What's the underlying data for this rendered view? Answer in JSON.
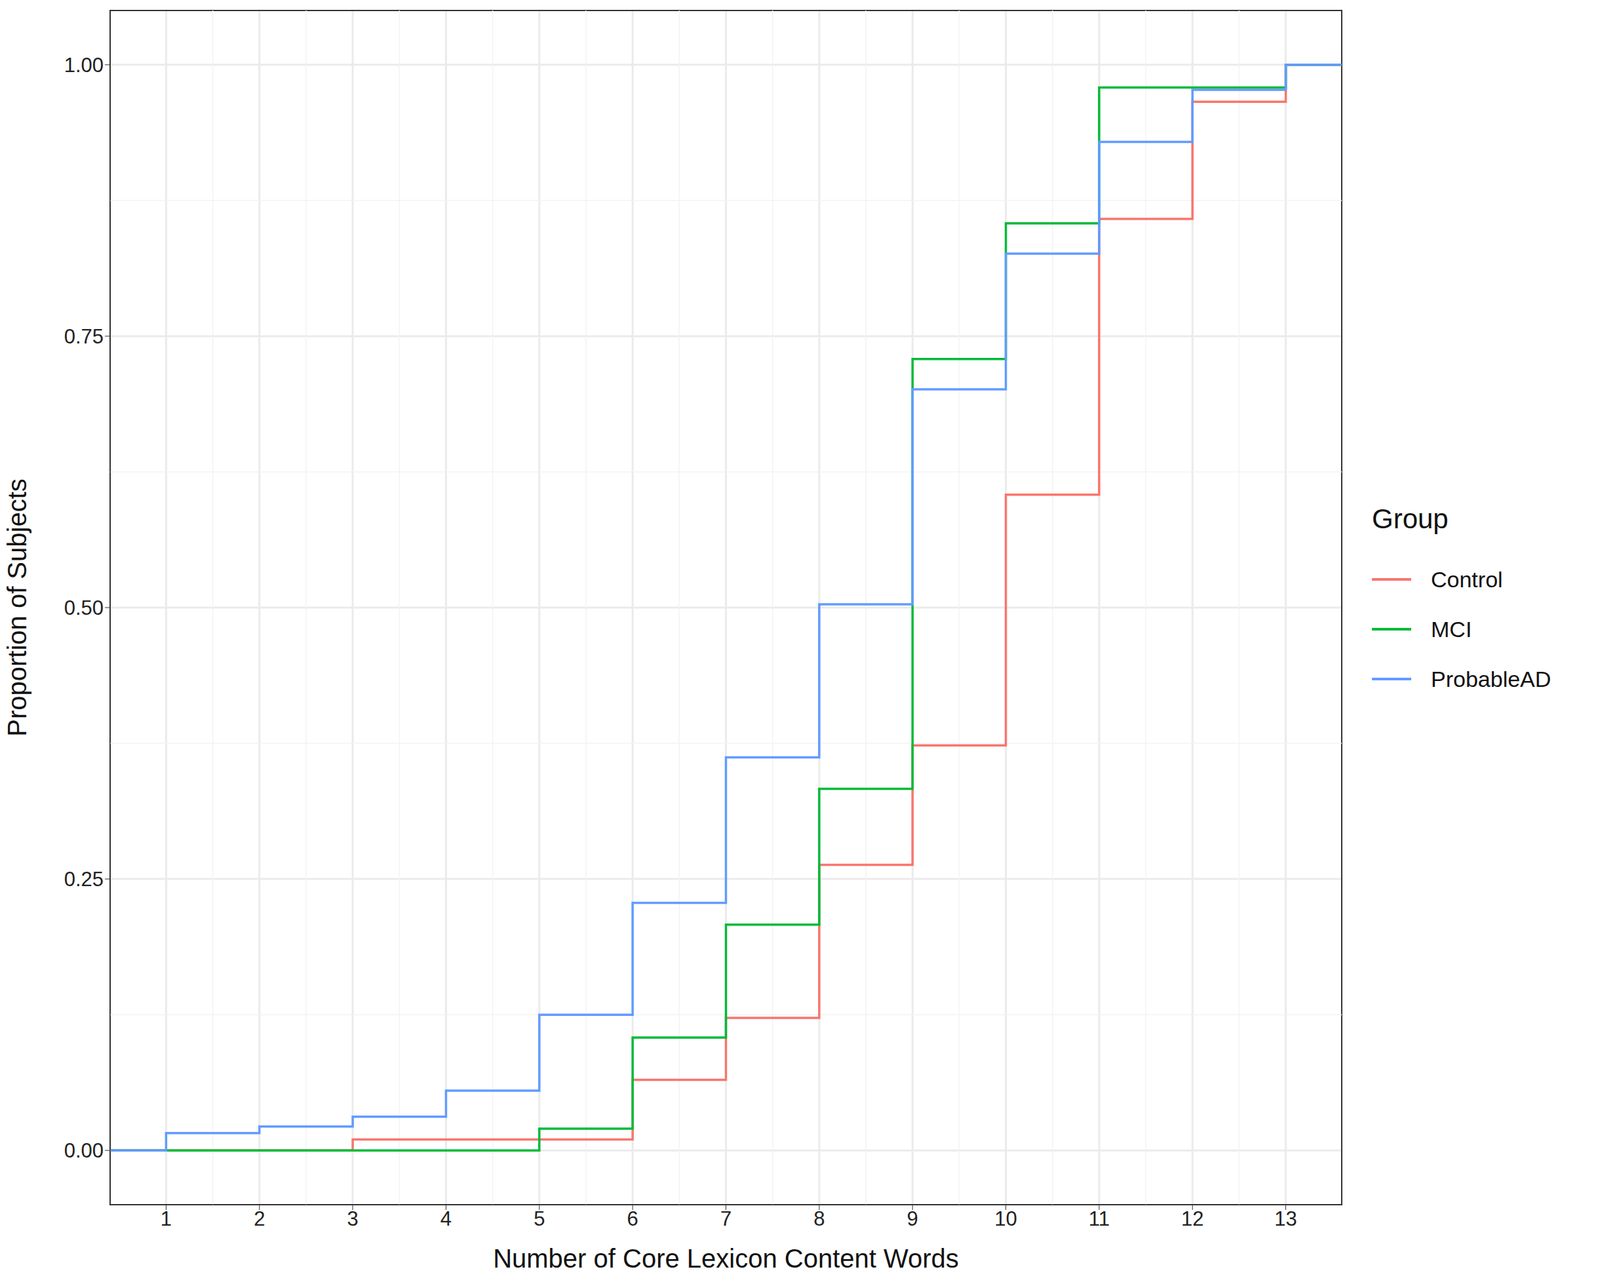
{
  "chart_data": {
    "type": "line",
    "x_label": "Number of Core Lexicon Content Words",
    "y_label": "Proportion of Subjects",
    "legend_title": "Group",
    "line_style": "step",
    "x": [
      0,
      1,
      2,
      3,
      4,
      5,
      6,
      7,
      8,
      9,
      10,
      11,
      12,
      13,
      14
    ],
    "series": [
      {
        "name": "Control",
        "color": "#f8766d",
        "values": [
          0,
          0,
          0,
          0.01,
          0.01,
          0.01,
          0.065,
          0.122,
          0.263,
          0.373,
          0.604,
          0.858,
          0.966,
          1,
          1
        ]
      },
      {
        "name": "MCI",
        "color": "#00ba38",
        "values": [
          0,
          0,
          0,
          0,
          0,
          0.02,
          0.104,
          0.208,
          0.333,
          0.729,
          0.854,
          0.979,
          0.979,
          1,
          1
        ]
      },
      {
        "name": "ProbableAD",
        "color": "#619cff",
        "values": [
          0,
          0.016,
          0.022,
          0.031,
          0.055,
          0.125,
          0.228,
          0.362,
          0.503,
          0.701,
          0.826,
          0.929,
          0.977,
          1,
          1
        ]
      }
    ],
    "xlim": [
      0.4,
      13.6
    ],
    "xticks": [
      1,
      2,
      3,
      4,
      5,
      6,
      7,
      8,
      9,
      10,
      11,
      12,
      13
    ],
    "ylim": [
      -0.05,
      1.05
    ],
    "yticks": [
      {
        "value": 0,
        "label": "0.00"
      },
      {
        "value": 0.25,
        "label": "0.25"
      },
      {
        "value": 0.5,
        "label": "0.50"
      },
      {
        "value": 0.75,
        "label": "0.75"
      },
      {
        "value": 1,
        "label": "1.00"
      }
    ],
    "grid": true,
    "legend": "right"
  }
}
